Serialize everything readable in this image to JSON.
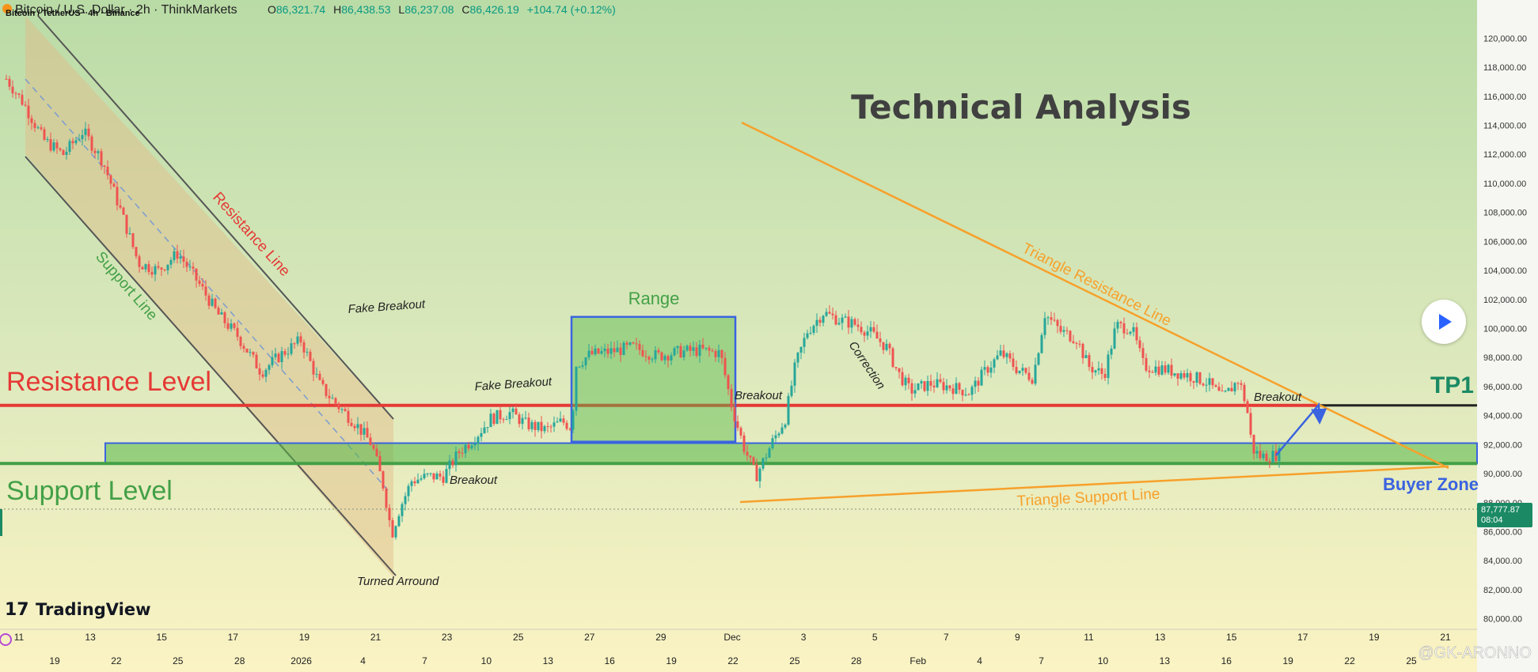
{
  "header": {
    "title": "Bitcoin / U.S. Dollar · 2h · ThinkMarkets",
    "overlay_text": "Bitcoin / TetherUS · 4h · Binance",
    "ohlc": {
      "o_label": "O",
      "o": "86,321.74",
      "h_label": "H",
      "h": "86,438.53",
      "l_label": "L",
      "l": "86,237.08",
      "c_label": "C",
      "c": "86,426.19",
      "change": "+104.74 (+0.12%)"
    }
  },
  "annotations": {
    "technical_analysis": "Technical Analysis",
    "resistance_level": "Resistance Level",
    "support_level": "Support Level",
    "resistance_line": "Resistance Line",
    "support_line": "Support Line",
    "fake_breakout_1": "Fake Breakout",
    "fake_breakout_2": "Fake Breakout",
    "turned_around": "Turned Arround",
    "breakout_1": "Breakout",
    "range": "Range",
    "breakout_2": "Breakout",
    "correction": "Correction",
    "triangle_resistance": "Triangle Resistance Line",
    "triangle_support": "Triangle Support Line",
    "breakout_3": "Breakout",
    "tp1": "TP1",
    "buyer_zone": "Buyer Zone"
  },
  "price_tag": {
    "price": "87,777.87",
    "time": "08:04"
  },
  "branding": {
    "logo_mark": "17",
    "name": "TradingView",
    "watermark": "@GK-ARONNO"
  },
  "colors": {
    "red": "#e53935",
    "green": "#43a047",
    "orange": "#f7a02a",
    "blue": "#3a63e0",
    "text_dark": "#404040",
    "price_tag": "#1b8a64"
  },
  "chart_data": {
    "type": "candlestick",
    "y_axis_ticks": [
      "120,000.00",
      "118,000.00",
      "116,000.00",
      "114,000.00",
      "112,000.00",
      "110,000.00",
      "108,000.00",
      "106,000.00",
      "104,000.00",
      "102,000.00",
      "100,000.00",
      "98,000.00",
      "96,000.00",
      "94,000.00",
      "92,000.00",
      "90,000.00",
      "88,000.00",
      "86,000.00",
      "84,000.00",
      "82,000.00",
      "80,000.00"
    ],
    "ylim": [
      79600,
      121000
    ],
    "levels": {
      "resistance": 94700,
      "support_zone": [
        90700,
        92100
      ],
      "tp1": 94700
    },
    "range_box": [
      92200,
      100800
    ],
    "x_axis_top": [
      "11",
      "13",
      "15",
      "17",
      "19",
      "21",
      "23",
      "25",
      "27",
      "29",
      "Dec",
      "3",
      "5",
      "7",
      "9",
      "11",
      "13",
      "15",
      "17",
      "19",
      "21"
    ],
    "x_axis_bottom": [
      "19",
      "22",
      "25",
      "28",
      "2026",
      "4",
      "7",
      "10",
      "13",
      "16",
      "19",
      "22",
      "25",
      "28",
      "Feb",
      "4",
      "7",
      "10",
      "13",
      "16",
      "19",
      "22",
      "25"
    ],
    "price_path": [
      [
        8,
        117200
      ],
      [
        30,
        115500
      ],
      [
        55,
        113000
      ],
      [
        80,
        112000
      ],
      [
        105,
        113600
      ],
      [
        130,
        111500
      ],
      [
        150,
        108500
      ],
      [
        175,
        104500
      ],
      [
        200,
        104000
      ],
      [
        225,
        105200
      ],
      [
        250,
        103200
      ],
      [
        275,
        101000
      ],
      [
        300,
        99500
      ],
      [
        330,
        97000
      ],
      [
        355,
        98200
      ],
      [
        380,
        99200
      ],
      [
        405,
        96000
      ],
      [
        430,
        94500
      ],
      [
        450,
        93400
      ],
      [
        470,
        92000
      ],
      [
        485,
        89000
      ],
      [
        495,
        85800
      ],
      [
        505,
        87600
      ],
      [
        520,
        89500
      ],
      [
        540,
        89800
      ],
      [
        560,
        89800
      ],
      [
        580,
        91500
      ],
      [
        600,
        92500
      ],
      [
        620,
        93800
      ],
      [
        645,
        94200
      ],
      [
        665,
        93400
      ],
      [
        690,
        93000
      ],
      [
        710,
        93600
      ],
      [
        722,
        93200
      ],
      [
        728,
        97500
      ],
      [
        745,
        98200
      ],
      [
        770,
        98400
      ],
      [
        800,
        98700
      ],
      [
        830,
        98100
      ],
      [
        860,
        98400
      ],
      [
        885,
        98500
      ],
      [
        910,
        98300
      ],
      [
        925,
        94500
      ],
      [
        940,
        91800
      ],
      [
        955,
        89800
      ],
      [
        975,
        92100
      ],
      [
        992,
        93800
      ],
      [
        1005,
        97500
      ],
      [
        1020,
        99800
      ],
      [
        1040,
        101100
      ],
      [
        1060,
        100600
      ],
      [
        1080,
        100300
      ],
      [
        1100,
        99700
      ],
      [
        1120,
        98700
      ],
      [
        1135,
        96900
      ],
      [
        1150,
        95700
      ],
      [
        1175,
        96200
      ],
      [
        1200,
        96000
      ],
      [
        1225,
        95600
      ],
      [
        1245,
        97100
      ],
      [
        1265,
        98300
      ],
      [
        1285,
        97200
      ],
      [
        1305,
        96600
      ],
      [
        1320,
        101000
      ],
      [
        1340,
        99800
      ],
      [
        1360,
        99300
      ],
      [
        1375,
        97400
      ],
      [
        1395,
        96800
      ],
      [
        1410,
        100200
      ],
      [
        1430,
        100000
      ],
      [
        1445,
        97400
      ],
      [
        1470,
        97200
      ],
      [
        1500,
        96800
      ],
      [
        1525,
        96300
      ],
      [
        1545,
        95200
      ],
      [
        1565,
        96500
      ],
      [
        1575,
        94600
      ],
      [
        1582,
        91700
      ],
      [
        1592,
        91200
      ],
      [
        1605,
        91200
      ],
      [
        1618,
        91400
      ]
    ]
  }
}
